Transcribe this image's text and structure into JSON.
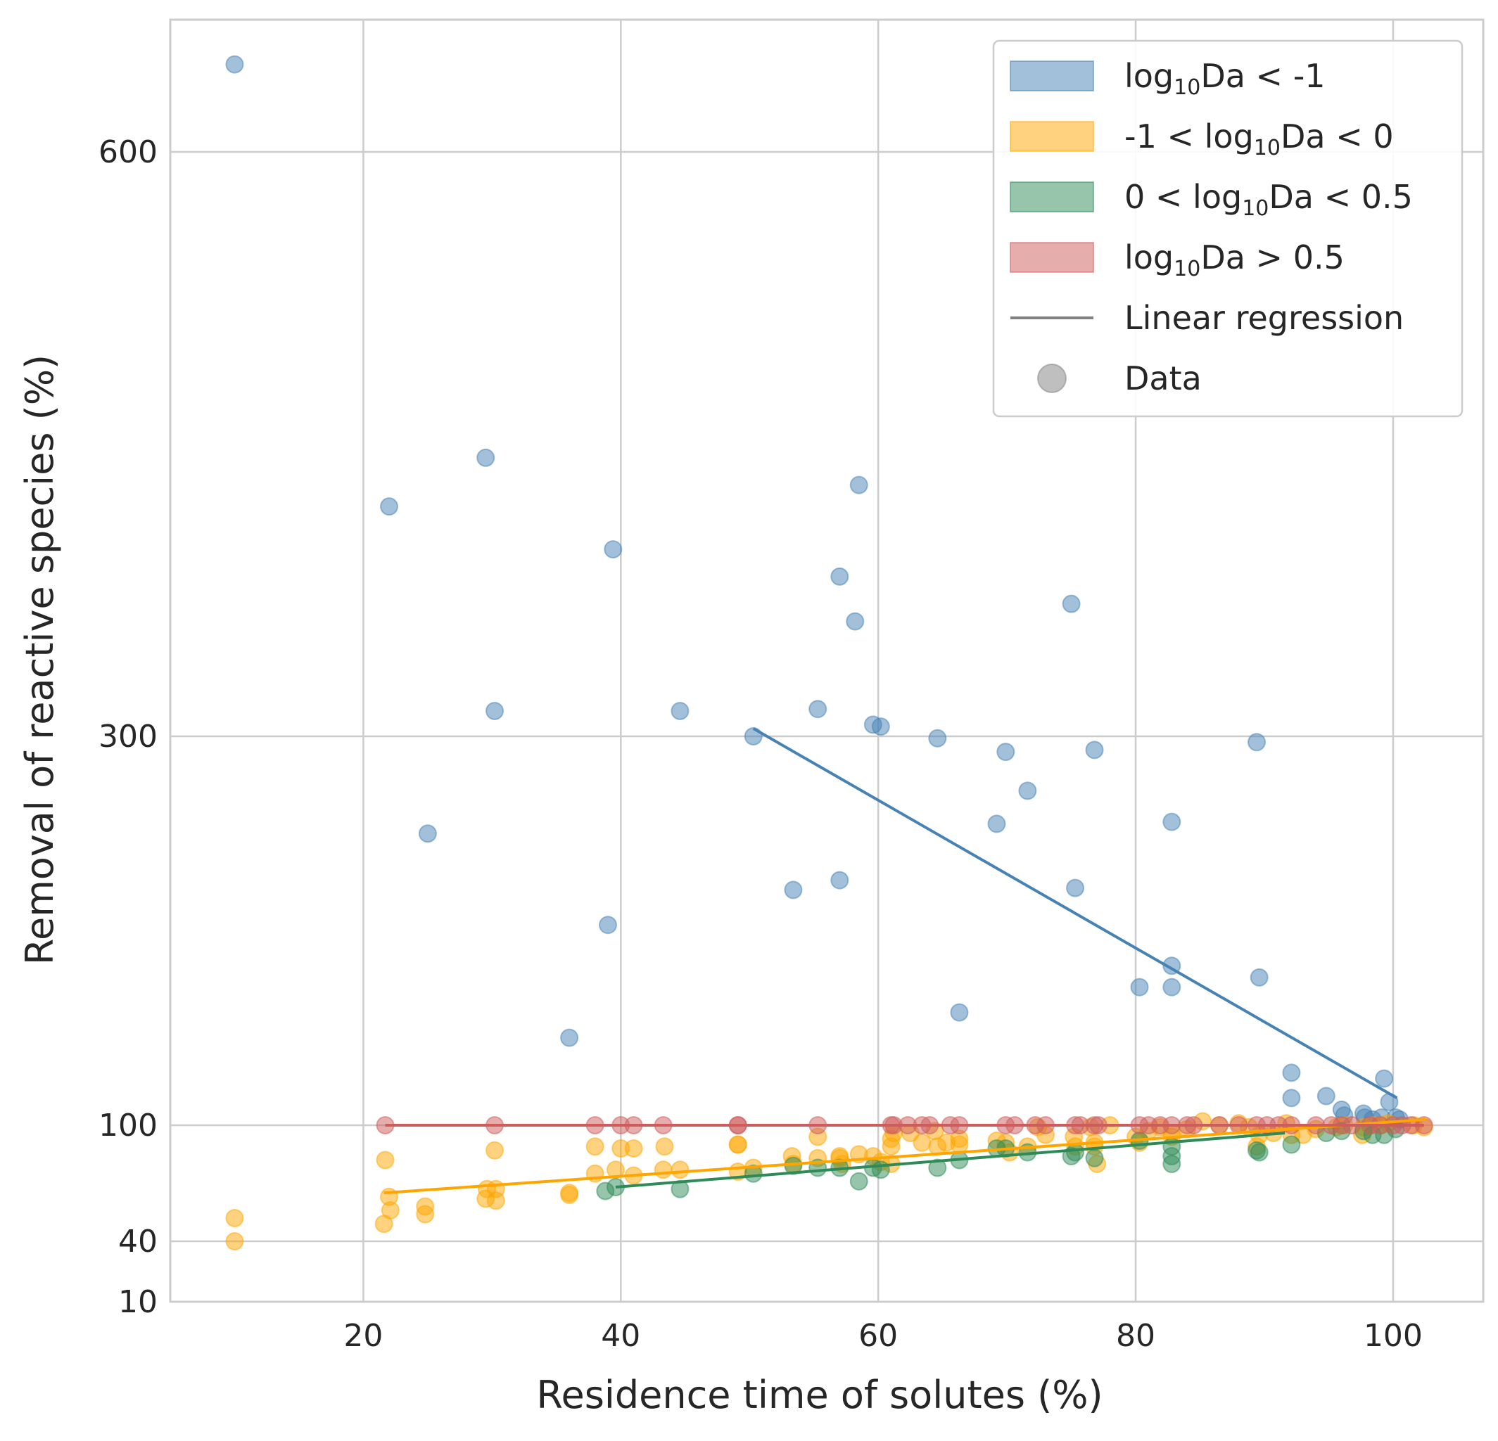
{
  "chart_data": {
    "type": "scatter",
    "xlabel": "Residence time of solutes (%)",
    "ylabel": "Removal of reactive species (%)",
    "xlim": [
      5,
      107
    ],
    "ylim": [
      10,
      685
    ],
    "xticks": [
      20,
      40,
      60,
      80,
      100
    ],
    "yticks": [
      10,
      40,
      100,
      300,
      600
    ],
    "grid": true,
    "legend_placement": "top-right",
    "legend": [
      {
        "label_html": "log<tspan dy='10' font-size='30'>10</tspan><tspan dy='-10'>Da &lt; -1</tspan>",
        "kind": "patch",
        "color": "#4682b4"
      },
      {
        "label_html": "-1 &lt; log<tspan dy='10' font-size='30'>10</tspan><tspan dy='-10'>Da &lt; 0</tspan>",
        "kind": "patch",
        "color": "#ffa500"
      },
      {
        "label_html": "0 &lt; log<tspan dy='10' font-size='30'>10</tspan><tspan dy='-10'>Da &lt; 0.5</tspan>",
        "kind": "patch",
        "color": "#2e8b57"
      },
      {
        "label_html": "log<tspan dy='10' font-size='30'>10</tspan><tspan dy='-10'>Da &gt; 0.5</tspan>",
        "kind": "patch",
        "color": "#cd5c5c"
      },
      {
        "label": "Linear regression",
        "kind": "line",
        "color": "#808080"
      },
      {
        "label": "Data",
        "kind": "marker",
        "color": "#808080"
      }
    ],
    "series": [
      {
        "color": "#4682b4",
        "points": [
          [
            10,
            645
          ],
          [
            22,
            418
          ],
          [
            29.5,
            443
          ],
          [
            30.2,
            313
          ],
          [
            25,
            250
          ],
          [
            36,
            145
          ],
          [
            39,
            203
          ],
          [
            39.4,
            396
          ],
          [
            44.6,
            313
          ],
          [
            50.3,
            300
          ],
          [
            53.4,
            221
          ],
          [
            55.3,
            314
          ],
          [
            57,
            382
          ],
          [
            57,
            226
          ],
          [
            58.2,
            359
          ],
          [
            58.5,
            429
          ],
          [
            59.6,
            306
          ],
          [
            60.2,
            305
          ],
          [
            64.6,
            299
          ],
          [
            66.3,
            158
          ],
          [
            69.2,
            255
          ],
          [
            69.9,
            292
          ],
          [
            71.6,
            272
          ],
          [
            75,
            368
          ],
          [
            75.3,
            222
          ],
          [
            76.8,
            293
          ],
          [
            80.3,
            171
          ],
          [
            82.8,
            256
          ],
          [
            82.8,
            182
          ],
          [
            82.8,
            171
          ],
          [
            89.4,
            297
          ],
          [
            89.6,
            176
          ],
          [
            92.1,
            127
          ],
          [
            92.1,
            114
          ],
          [
            94.8,
            115
          ],
          [
            96,
            108
          ],
          [
            96.2,
            105
          ],
          [
            97.7,
            106
          ],
          [
            97.8,
            104
          ],
          [
            98.4,
            103
          ],
          [
            99.1,
            104
          ],
          [
            99.3,
            124
          ],
          [
            99.7,
            112
          ],
          [
            100.2,
            104
          ],
          [
            100.5,
            103
          ]
        ],
        "fit": [
          [
            50.3,
            304
          ],
          [
            100.3,
            114
          ]
        ]
      },
      {
        "color": "#ffa500",
        "points": [
          [
            10,
            40
          ],
          [
            10,
            52
          ],
          [
            21.7,
            82
          ],
          [
            21.6,
            49
          ],
          [
            22,
            63
          ],
          [
            22.1,
            56
          ],
          [
            24.8,
            58
          ],
          [
            24.8,
            54
          ],
          [
            29.5,
            62
          ],
          [
            29.6,
            67
          ],
          [
            30.2,
            87
          ],
          [
            30.3,
            67
          ],
          [
            30.3,
            61
          ],
          [
            36,
            65
          ],
          [
            36,
            64
          ],
          [
            38,
            89
          ],
          [
            38,
            75
          ],
          [
            39.6,
            77
          ],
          [
            40,
            88
          ],
          [
            41,
            74
          ],
          [
            41,
            88
          ],
          [
            43.3,
            77
          ],
          [
            43.4,
            89
          ],
          [
            44.6,
            77
          ],
          [
            49.1,
            90
          ],
          [
            49.1,
            90
          ],
          [
            49.1,
            76
          ],
          [
            50.3,
            78
          ],
          [
            53.3,
            84
          ],
          [
            53.4,
            80
          ],
          [
            55.3,
            94
          ],
          [
            55.3,
            83
          ],
          [
            57,
            84
          ],
          [
            57,
            83
          ],
          [
            57.2,
            80
          ],
          [
            58.5,
            85
          ],
          [
            59.6,
            84
          ],
          [
            60.2,
            81
          ],
          [
            61,
            93
          ],
          [
            61,
            89
          ],
          [
            61,
            80
          ],
          [
            61.2,
            96
          ],
          [
            62.5,
            96
          ],
          [
            63.4,
            91
          ],
          [
            64.4,
            97
          ],
          [
            64.6,
            89
          ],
          [
            65.3,
            91
          ],
          [
            66.3,
            93
          ],
          [
            66.3,
            90
          ],
          [
            69.2,
            92
          ],
          [
            69.9,
            91
          ],
          [
            70.2,
            86
          ],
          [
            71.6,
            89
          ],
          [
            72.4,
            99
          ],
          [
            73,
            95
          ],
          [
            75.2,
            94
          ],
          [
            75.3,
            89
          ],
          [
            76.5,
            99
          ],
          [
            76.8,
            91
          ],
          [
            76.8,
            89
          ],
          [
            77,
            80
          ],
          [
            78,
            100
          ],
          [
            80,
            94
          ],
          [
            80.3,
            91
          ],
          [
            81,
            97
          ],
          [
            81.9,
            99
          ],
          [
            82.8,
            94
          ],
          [
            82.8,
            96
          ],
          [
            84,
            98
          ],
          [
            85.2,
            102
          ],
          [
            86.5,
            100
          ],
          [
            88,
            101
          ],
          [
            88.8,
            99
          ],
          [
            89.4,
            89
          ],
          [
            89.6,
            95
          ],
          [
            90.7,
            96
          ],
          [
            91.7,
            101
          ],
          [
            92.1,
            95
          ],
          [
            93,
            95
          ],
          [
            94,
            98
          ],
          [
            95.6,
            99
          ],
          [
            96.2,
            100
          ],
          [
            97.6,
            95
          ],
          [
            97.7,
            99
          ],
          [
            98.4,
            100
          ],
          [
            99.1,
            100
          ],
          [
            99.6,
            101
          ],
          [
            101.6,
            100
          ],
          [
            102.4,
            99
          ]
        ],
        "fit": [
          [
            21.6,
            65
          ],
          [
            102.6,
            103
          ]
        ]
      },
      {
        "color": "#2e8b57",
        "points": [
          [
            38.8,
            66
          ],
          [
            39.6,
            68
          ],
          [
            44.6,
            67
          ],
          [
            50.3,
            75
          ],
          [
            53.4,
            79
          ],
          [
            55.3,
            78
          ],
          [
            57,
            78
          ],
          [
            58.5,
            71
          ],
          [
            59.6,
            78
          ],
          [
            60.2,
            77
          ],
          [
            64.6,
            78
          ],
          [
            66.3,
            82
          ],
          [
            69.2,
            88
          ],
          [
            69.9,
            88
          ],
          [
            71.6,
            86
          ],
          [
            75,
            84
          ],
          [
            75.3,
            86
          ],
          [
            76.8,
            83
          ],
          [
            80.3,
            92
          ],
          [
            82.8,
            89
          ],
          [
            82.8,
            84
          ],
          [
            82.8,
            80
          ],
          [
            89.4,
            87
          ],
          [
            89.6,
            86
          ],
          [
            92.1,
            90
          ],
          [
            94.8,
            96
          ],
          [
            96,
            97
          ],
          [
            97.7,
            97
          ],
          [
            98.4,
            95
          ],
          [
            99.3,
            95
          ],
          [
            100.2,
            98
          ]
        ],
        "fit": [
          [
            39.6,
            68
          ],
          [
            91.6,
            96
          ]
        ]
      },
      {
        "color": "#cd5c5c",
        "points": [
          [
            21.7,
            100
          ],
          [
            30.2,
            100
          ],
          [
            38,
            100
          ],
          [
            40,
            100
          ],
          [
            41,
            100
          ],
          [
            43.3,
            100
          ],
          [
            49.1,
            100
          ],
          [
            49.1,
            100
          ],
          [
            55.3,
            100
          ],
          [
            61,
            100
          ],
          [
            61.2,
            100
          ],
          [
            62.3,
            100
          ],
          [
            63.4,
            100
          ],
          [
            64,
            100
          ],
          [
            65.6,
            100
          ],
          [
            66.3,
            100
          ],
          [
            69.9,
            100
          ],
          [
            70.6,
            100
          ],
          [
            72.2,
            100
          ],
          [
            73,
            100
          ],
          [
            75.3,
            100
          ],
          [
            75.7,
            100
          ],
          [
            76.8,
            100
          ],
          [
            77.1,
            100
          ],
          [
            80.3,
            100
          ],
          [
            81,
            100
          ],
          [
            81.9,
            100
          ],
          [
            82.8,
            100
          ],
          [
            84,
            100
          ],
          [
            84.5,
            100
          ],
          [
            86.5,
            100
          ],
          [
            88,
            100
          ],
          [
            89.4,
            100
          ],
          [
            90.2,
            100
          ],
          [
            91.1,
            100
          ],
          [
            92.1,
            100
          ],
          [
            94,
            100
          ],
          [
            95.2,
            100
          ],
          [
            96,
            100
          ],
          [
            96.8,
            100
          ],
          [
            98.2,
            100
          ],
          [
            99,
            100
          ],
          [
            100,
            100
          ],
          [
            100.7,
            100
          ],
          [
            101.4,
            100
          ],
          [
            102.4,
            100
          ]
        ],
        "fit": [
          [
            21.7,
            100
          ],
          [
            102.4,
            100
          ]
        ]
      }
    ]
  }
}
